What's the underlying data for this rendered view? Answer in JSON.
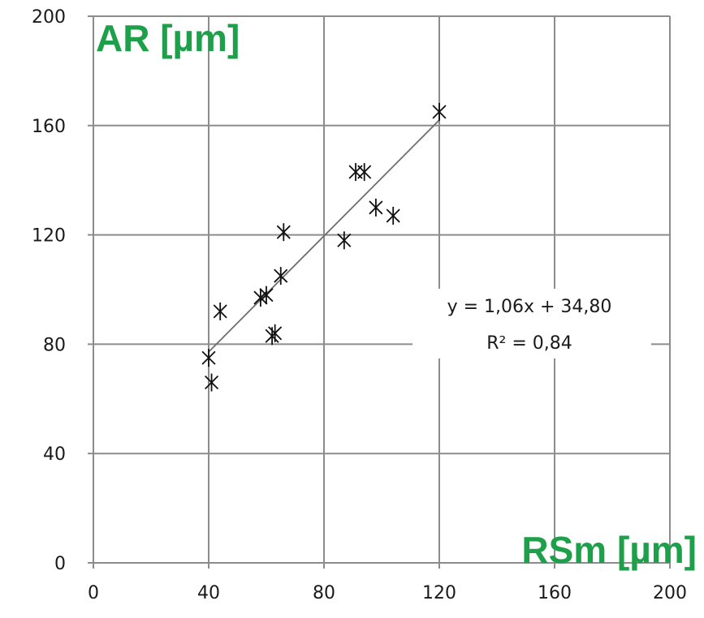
{
  "chart_data": {
    "type": "scatter",
    "ylabel": "AR [µm]",
    "xlabel": "RSm [µm]",
    "xlim": [
      0,
      200
    ],
    "ylim": [
      0,
      200
    ],
    "x_ticks": [
      "0",
      "40",
      "80",
      "120",
      "160",
      "200"
    ],
    "y_ticks": [
      "0",
      "40",
      "80",
      "120",
      "160",
      "200"
    ],
    "grid": true,
    "marker": "asterisk",
    "points": [
      {
        "x": 40,
        "y": 75
      },
      {
        "x": 41,
        "y": 66
      },
      {
        "x": 44,
        "y": 92
      },
      {
        "x": 58,
        "y": 97
      },
      {
        "x": 60,
        "y": 98
      },
      {
        "x": 62,
        "y": 83
      },
      {
        "x": 63,
        "y": 84
      },
      {
        "x": 65,
        "y": 105
      },
      {
        "x": 66,
        "y": 121
      },
      {
        "x": 87,
        "y": 118
      },
      {
        "x": 91,
        "y": 143
      },
      {
        "x": 94,
        "y": 143
      },
      {
        "x": 98,
        "y": 130
      },
      {
        "x": 104,
        "y": 127
      },
      {
        "x": 120,
        "y": 165
      }
    ],
    "trendline": {
      "slope": 1.06,
      "intercept": 34.8,
      "x_range": [
        40,
        120
      ],
      "equation": "y = 1,06x + 34,80",
      "r_squared": "R² = 0,84"
    }
  }
}
